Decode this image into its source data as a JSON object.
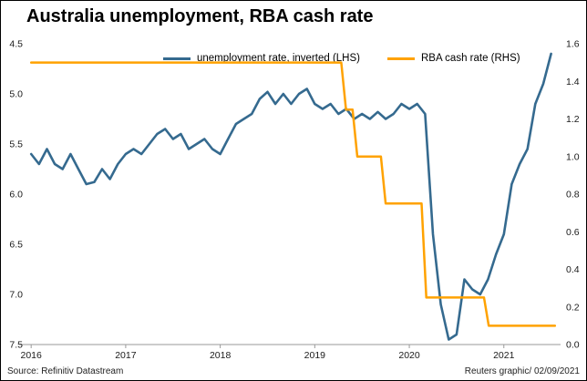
{
  "title": "Australia unemployment, RBA cash rate",
  "footer": {
    "source": "Source: Refinitiv Datastream",
    "credit": "Reuters graphic/ 02/09/2021"
  },
  "legend": [
    {
      "label": "unemployment rate, inverted (LHS)"
    },
    {
      "label": "RBA cash rate (RHS)"
    }
  ],
  "chart_data": {
    "type": "line",
    "title": "Australia unemployment, RBA cash rate",
    "grid": "off",
    "legend_position": "top-inside",
    "axis_color": "#9a9a9a",
    "x_axis": {
      "min": 2015.95,
      "max": 2021.6,
      "ticks": [
        {
          "value": 2016,
          "label": "2016"
        },
        {
          "value": 2017,
          "label": "2017"
        },
        {
          "value": 2018,
          "label": "2018"
        },
        {
          "value": 2019,
          "label": "2019"
        },
        {
          "value": 2020,
          "label": "2020"
        },
        {
          "value": 2021,
          "label": "2021"
        }
      ]
    },
    "left_axis": {
      "label": "unemployment rate, inverted (LHS)",
      "min": 4.5,
      "max": 7.5,
      "inverted": true,
      "ticks": [
        {
          "value": 4.5,
          "label": "4.5"
        },
        {
          "value": 5.0,
          "label": "5.0"
        },
        {
          "value": 5.5,
          "label": "5.5"
        },
        {
          "value": 6.0,
          "label": "6.0"
        },
        {
          "value": 6.5,
          "label": "6.5"
        },
        {
          "value": 7.0,
          "label": "7.0"
        },
        {
          "value": 7.5,
          "label": "7.5"
        }
      ]
    },
    "right_axis": {
      "label": "RBA cash rate (RHS)",
      "min": 0.0,
      "max": 1.6,
      "ticks": [
        {
          "value": 1.6,
          "label": "1.6"
        },
        {
          "value": 1.4,
          "label": "1.4"
        },
        {
          "value": 1.2,
          "label": "1.2"
        },
        {
          "value": 1.0,
          "label": "1.0"
        },
        {
          "value": 0.8,
          "label": "0.8"
        },
        {
          "value": 0.6,
          "label": "0.6"
        },
        {
          "value": 0.4,
          "label": "0.4"
        },
        {
          "value": 0.2,
          "label": "0.2"
        },
        {
          "value": 0.0,
          "label": "0.0"
        }
      ]
    },
    "series": [
      {
        "id": "unemployment",
        "name": "unemployment rate, inverted (LHS)",
        "axis": "left",
        "color": "#356a8f",
        "stroke_width": 2.6,
        "x": [
          2016.0,
          2016.083,
          2016.167,
          2016.25,
          2016.333,
          2016.417,
          2016.5,
          2016.583,
          2016.667,
          2016.75,
          2016.833,
          2016.917,
          2017.0,
          2017.083,
          2017.167,
          2017.25,
          2017.333,
          2017.417,
          2017.5,
          2017.583,
          2017.667,
          2017.75,
          2017.833,
          2017.917,
          2018.0,
          2018.083,
          2018.167,
          2018.25,
          2018.333,
          2018.417,
          2018.5,
          2018.583,
          2018.667,
          2018.75,
          2018.833,
          2018.917,
          2019.0,
          2019.083,
          2019.167,
          2019.25,
          2019.333,
          2019.417,
          2019.5,
          2019.583,
          2019.667,
          2019.75,
          2019.833,
          2019.917,
          2020.0,
          2020.083,
          2020.167,
          2020.25,
          2020.333,
          2020.417,
          2020.5,
          2020.583,
          2020.667,
          2020.75,
          2020.833,
          2020.917,
          2021.0,
          2021.083,
          2021.167,
          2021.25,
          2021.333,
          2021.417,
          2021.5
        ],
        "y": [
          5.6,
          5.7,
          5.55,
          5.7,
          5.75,
          5.6,
          5.75,
          5.9,
          5.88,
          5.75,
          5.85,
          5.7,
          5.6,
          5.55,
          5.6,
          5.5,
          5.4,
          5.35,
          5.45,
          5.4,
          5.55,
          5.5,
          5.45,
          5.55,
          5.6,
          5.45,
          5.3,
          5.25,
          5.2,
          5.05,
          4.98,
          5.1,
          5.0,
          5.1,
          5.0,
          4.95,
          5.1,
          5.15,
          5.1,
          5.2,
          5.15,
          5.25,
          5.2,
          5.25,
          5.18,
          5.25,
          5.2,
          5.1,
          5.15,
          5.1,
          5.2,
          6.4,
          7.1,
          7.45,
          7.4,
          6.85,
          6.95,
          7.0,
          6.85,
          6.6,
          6.4,
          5.9,
          5.7,
          5.55,
          5.1,
          4.9,
          4.6
        ]
      },
      {
        "id": "cash-rate",
        "name": "RBA cash rate (RHS)",
        "axis": "right",
        "color": "#ffa200",
        "stroke_width": 2.5,
        "x": [
          2016.0,
          2019.28,
          2019.33,
          2019.4,
          2019.45,
          2019.7,
          2019.75,
          2020.13,
          2020.18,
          2020.79,
          2020.84,
          2021.54
        ],
        "y": [
          1.5,
          1.5,
          1.25,
          1.25,
          1.0,
          1.0,
          0.75,
          0.75,
          0.25,
          0.25,
          0.1,
          0.1
        ]
      }
    ]
  }
}
